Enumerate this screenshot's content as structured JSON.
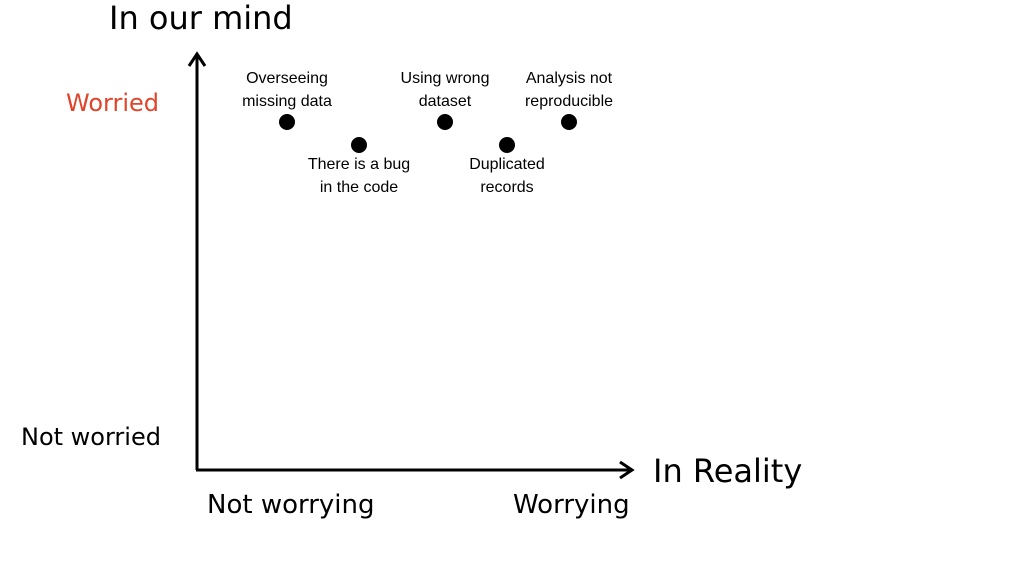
{
  "y_axis_title": "In our mind",
  "x_axis_title": "In Reality",
  "y_axis": {
    "high_label": "Worried",
    "low_label": "Not worried",
    "high_color": "#e0442a"
  },
  "x_axis": {
    "low_label": "Not worrying",
    "high_label": "Worrying"
  },
  "points": [
    {
      "label": "Overseeing\nmissing data"
    },
    {
      "label": "There is a bug\nin the code"
    },
    {
      "label": "Using wrong\ndataset"
    },
    {
      "label": "Duplicated\nrecords"
    },
    {
      "label": "Analysis not\nreproducible"
    }
  ]
}
